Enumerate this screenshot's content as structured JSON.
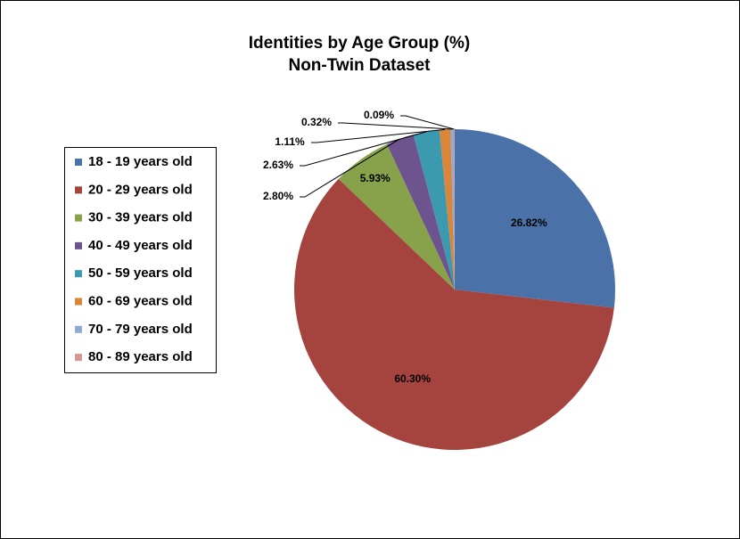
{
  "chart_data": {
    "type": "pie",
    "title": "Identities by Age Group (%)",
    "subtitle": "Non-Twin Dataset",
    "categories": [
      "18 - 19 years old",
      "20 - 29 years old",
      "30 - 39 years old",
      "40 - 49 years old",
      "50 - 59 years old",
      "60 - 69 years old",
      "70 - 79 years old",
      "80 - 89 years old"
    ],
    "values": [
      26.82,
      60.3,
      5.93,
      2.8,
      2.63,
      1.11,
      0.32,
      0.09
    ],
    "value_labels": [
      "26.82%",
      "60.30%",
      "5.93%",
      "2.80%",
      "2.63%",
      "1.11%",
      "0.32%",
      "0.09%"
    ],
    "colors": [
      "#4a72a8",
      "#a5443f",
      "#87a24a",
      "#6d548e",
      "#3c9ab0",
      "#d9853a",
      "#92aad4",
      "#d49893"
    ],
    "legend": "left"
  }
}
